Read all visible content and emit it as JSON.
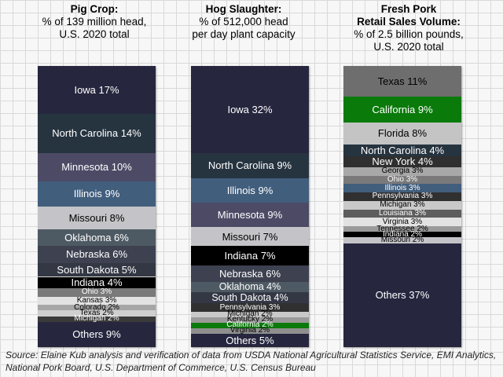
{
  "chart_data": [
    {
      "type": "bar",
      "title": "Pig Crop:",
      "subtitle": "% of 139 million head,\nU.S. 2020 total",
      "unit": "%",
      "segments": [
        {
          "label": "Iowa 17%",
          "value": 17,
          "color": "#26263f",
          "text_color": "#ffffff"
        },
        {
          "label": "North Carolina 14%",
          "value": 14,
          "color": "#263440",
          "text_color": "#ffffff"
        },
        {
          "label": "Minnesota 10%",
          "value": 10,
          "color": "#4d4a66",
          "text_color": "#ffffff"
        },
        {
          "label": "Illinois 9%",
          "value": 9,
          "color": "#415e7d",
          "text_color": "#ffffff"
        },
        {
          "label": "Missouri 8%",
          "value": 8,
          "color": "#c4c4c8",
          "text_color": "#000000"
        },
        {
          "label": "Oklahoma 6%",
          "value": 6,
          "color": "#4e5a63",
          "text_color": "#ffffff"
        },
        {
          "label": "Nebraska 6%",
          "value": 6,
          "color": "#3d4150",
          "text_color": "#ffffff"
        },
        {
          "label": "South Dakota 5%",
          "value": 5,
          "color": "#343845",
          "text_color": "#ffffff"
        },
        {
          "label": "Indiana 4%",
          "value": 4,
          "color": "#000000",
          "text_color": "#ffffff"
        },
        {
          "label": "Ohio 3%",
          "value": 3,
          "color": "#7a7a7a",
          "text_color": "#ffffff"
        },
        {
          "label": "Kansas 3%",
          "value": 3,
          "color": "#e2e2e2",
          "text_color": "#000000"
        },
        {
          "label": "Colorado 2%",
          "value": 2,
          "color": "#a6a6a6",
          "text_color": "#000000"
        },
        {
          "label": "Texas 2%",
          "value": 2,
          "color": "#cfcfcf",
          "text_color": "#000000"
        },
        {
          "label": "Michigan 2%",
          "value": 2,
          "color": "#3a3a3a",
          "text_color": "#ffffff"
        },
        {
          "label": "Others 9%",
          "value": 9,
          "color": "#26263f",
          "text_color": "#ffffff"
        }
      ]
    },
    {
      "type": "bar",
      "title": "Hog Slaughter:",
      "subtitle": "% of 512,000 head\nper day plant capacity",
      "unit": "%",
      "segments": [
        {
          "label": "Iowa 32%",
          "value": 32,
          "color": "#26263f",
          "text_color": "#ffffff"
        },
        {
          "label": "North Carolina 9%",
          "value": 9,
          "color": "#263440",
          "text_color": "#ffffff"
        },
        {
          "label": "Illinois 9%",
          "value": 9,
          "color": "#415e7d",
          "text_color": "#ffffff"
        },
        {
          "label": "Minnesota 9%",
          "value": 9,
          "color": "#4d4a66",
          "text_color": "#ffffff"
        },
        {
          "label": "Missouri 7%",
          "value": 7,
          "color": "#c4c4c8",
          "text_color": "#000000"
        },
        {
          "label": "Indiana 7%",
          "value": 7,
          "color": "#000000",
          "text_color": "#ffffff"
        },
        {
          "label": "Nebraska 6%",
          "value": 6,
          "color": "#3d4150",
          "text_color": "#ffffff"
        },
        {
          "label": "Oklahoma 4%",
          "value": 4,
          "color": "#4e5a63",
          "text_color": "#ffffff"
        },
        {
          "label": "South Dakota 4%",
          "value": 4,
          "color": "#343845",
          "text_color": "#ffffff"
        },
        {
          "label": "Pennsylvania 3%",
          "value": 3,
          "color": "#303030",
          "text_color": "#ffffff"
        },
        {
          "label": "Michigan 2%",
          "value": 2,
          "color": "#c9c9c9",
          "text_color": "#000000"
        },
        {
          "label": "Kentucky 2%",
          "value": 2,
          "color": "#9a9a9a",
          "text_color": "#000000"
        },
        {
          "label": "California 2%",
          "value": 2,
          "color": "#0a7a0a",
          "text_color": "#ffffff"
        },
        {
          "label": "Virginia 2%",
          "value": 2,
          "color": "#8f8f8f",
          "text_color": "#000000"
        },
        {
          "label": "Others 5%",
          "value": 5,
          "color": "#26263f",
          "text_color": "#ffffff"
        }
      ]
    },
    {
      "type": "bar",
      "title": "Fresh Pork\nRetail Sales Volume:",
      "subtitle": "% of 2.5 billion pounds,\nU.S. 2020 total",
      "unit": "%",
      "segments": [
        {
          "label": "Texas 11%",
          "value": 11,
          "color": "#6e6e6e",
          "text_color": "#000000"
        },
        {
          "label": "California 9%",
          "value": 9,
          "color": "#0a7a0a",
          "text_color": "#ffffff"
        },
        {
          "label": "Florida 8%",
          "value": 8,
          "color": "#c4c4c4",
          "text_color": "#000000"
        },
        {
          "label": "North Carolina 4%",
          "value": 4,
          "color": "#263440",
          "text_color": "#ffffff"
        },
        {
          "label": "New York 4%",
          "value": 4,
          "color": "#2f2f2f",
          "text_color": "#ffffff"
        },
        {
          "label": "Georgia 3%",
          "value": 3,
          "color": "#a8a8a8",
          "text_color": "#000000"
        },
        {
          "label": "Ohio 3%",
          "value": 3,
          "color": "#7a7a7a",
          "text_color": "#ffffff"
        },
        {
          "label": "Illinois 3%",
          "value": 3,
          "color": "#415e7d",
          "text_color": "#ffffff"
        },
        {
          "label": "Pennsylvania 3%",
          "value": 3,
          "color": "#303030",
          "text_color": "#ffffff"
        },
        {
          "label": "Michigan 3%",
          "value": 3,
          "color": "#c9c9c9",
          "text_color": "#000000"
        },
        {
          "label": "Louisiana 3%",
          "value": 3,
          "color": "#5e5e5e",
          "text_color": "#ffffff"
        },
        {
          "label": "Virginia 3%",
          "value": 3,
          "color": "#e2e2e2",
          "text_color": "#000000"
        },
        {
          "label": "Tennessee 2%",
          "value": 2,
          "color": "#9a9a9a",
          "text_color": "#000000"
        },
        {
          "label": "Indiana 2%",
          "value": 2,
          "color": "#000000",
          "text_color": "#ffffff"
        },
        {
          "label": "Missouri 2%",
          "value": 2,
          "color": "#c4c4c8",
          "text_color": "#000000"
        },
        {
          "label": "Others 37%",
          "value": 37,
          "color": "#26263f",
          "text_color": "#ffffff"
        }
      ]
    }
  ],
  "source": "Source: Elaine Kub analysis and verification of data from USDA National Agricultural Statistics Service, EMI Analytics, National Pork Board, U.S. Department of Commerce, U.S. Census Bureau"
}
